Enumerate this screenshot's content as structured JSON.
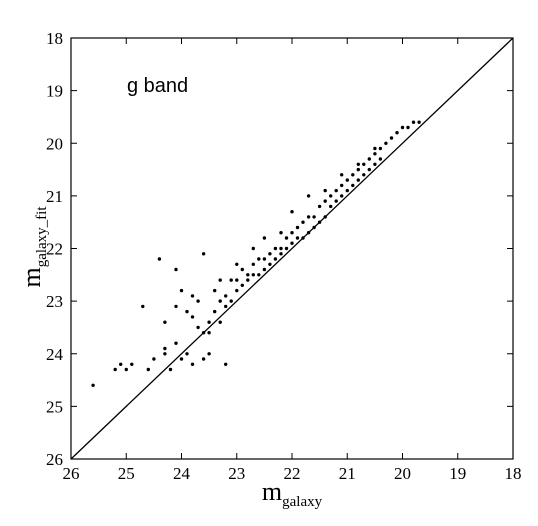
{
  "chart_data": {
    "type": "scatter",
    "title": "",
    "annotation": "g band",
    "xlabel": {
      "main": "m",
      "sub": "galaxy"
    },
    "ylabel": {
      "main": "m",
      "sub": "galaxy_fit"
    },
    "xlim": [
      26,
      18
    ],
    "ylim": [
      26,
      18
    ],
    "x_inverted": true,
    "y_inverted": true,
    "grid": false,
    "legend": "none",
    "xticks": [
      "26",
      "25",
      "24",
      "23",
      "22",
      "21",
      "20",
      "19",
      "18"
    ],
    "yticks": [
      "18",
      "19",
      "20",
      "21",
      "22",
      "23",
      "24",
      "25",
      "26"
    ],
    "reference_line": {
      "label": "",
      "x": [
        26,
        18
      ],
      "y": [
        26,
        18
      ]
    },
    "point_color": "#000000",
    "series": [
      {
        "x": [
          25.6,
          25.2,
          25.1,
          25.0,
          24.9,
          24.7,
          24.6,
          24.5,
          24.4,
          24.3,
          24.3,
          24.2,
          24.1,
          24.1,
          24.0,
          24.0,
          23.9,
          23.9,
          23.8,
          23.8,
          23.7,
          23.7,
          23.6,
          23.6,
          23.5,
          23.5,
          23.4,
          23.4,
          23.3,
          23.3,
          23.2,
          23.2,
          23.1,
          23.1,
          23.0,
          23.0,
          22.9,
          22.9,
          22.8,
          22.8,
          22.7,
          22.7,
          22.6,
          22.6,
          22.5,
          22.5,
          22.4,
          22.4,
          22.3,
          22.3,
          22.2,
          22.2,
          22.1,
          22.1,
          22.0,
          22.0,
          21.9,
          21.9,
          21.8,
          21.8,
          21.7,
          21.7,
          21.6,
          21.6,
          21.5,
          21.5,
          21.4,
          21.4,
          21.3,
          21.3,
          21.2,
          21.2,
          21.1,
          21.1,
          21.0,
          21.0,
          20.9,
          20.9,
          20.8,
          20.8,
          20.7,
          20.7,
          20.6,
          20.6,
          20.5,
          20.5,
          20.4,
          20.4,
          20.3,
          20.2,
          20.1,
          20.0,
          19.9,
          19.8,
          19.7,
          23.3,
          23.0,
          22.7,
          22.5,
          22.2,
          22.0,
          21.7,
          21.4,
          21.1,
          20.8,
          20.5,
          23.6,
          23.8,
          24.1,
          24.3,
          23.5,
          23.2
        ],
        "y": [
          24.6,
          24.3,
          24.2,
          24.3,
          24.2,
          23.1,
          24.3,
          24.1,
          22.2,
          24.0,
          23.4,
          24.3,
          22.4,
          23.1,
          24.1,
          22.8,
          23.2,
          24.0,
          23.3,
          22.9,
          23.5,
          23.0,
          23.6,
          22.1,
          23.4,
          23.6,
          23.2,
          22.8,
          23.0,
          23.4,
          22.9,
          23.1,
          22.6,
          23.0,
          22.6,
          22.8,
          22.4,
          22.7,
          22.5,
          22.6,
          22.3,
          22.5,
          22.2,
          22.5,
          22.2,
          22.4,
          22.1,
          22.3,
          22.0,
          22.2,
          22.0,
          22.1,
          21.8,
          22.0,
          21.7,
          21.9,
          21.6,
          21.8,
          21.5,
          21.8,
          21.4,
          21.7,
          21.4,
          21.6,
          21.2,
          21.5,
          21.1,
          21.4,
          21.0,
          21.2,
          20.9,
          21.1,
          20.8,
          21.0,
          20.7,
          20.9,
          20.6,
          20.8,
          20.5,
          20.7,
          20.4,
          20.6,
          20.3,
          20.5,
          20.2,
          20.4,
          20.1,
          20.3,
          20.0,
          19.9,
          19.8,
          19.7,
          19.7,
          19.6,
          19.6,
          22.6,
          22.3,
          22.0,
          21.8,
          21.7,
          21.3,
          21.0,
          20.9,
          20.6,
          20.4,
          20.1,
          24.1,
          24.2,
          23.8,
          23.9,
          24.0,
          24.2
        ]
      }
    ]
  }
}
